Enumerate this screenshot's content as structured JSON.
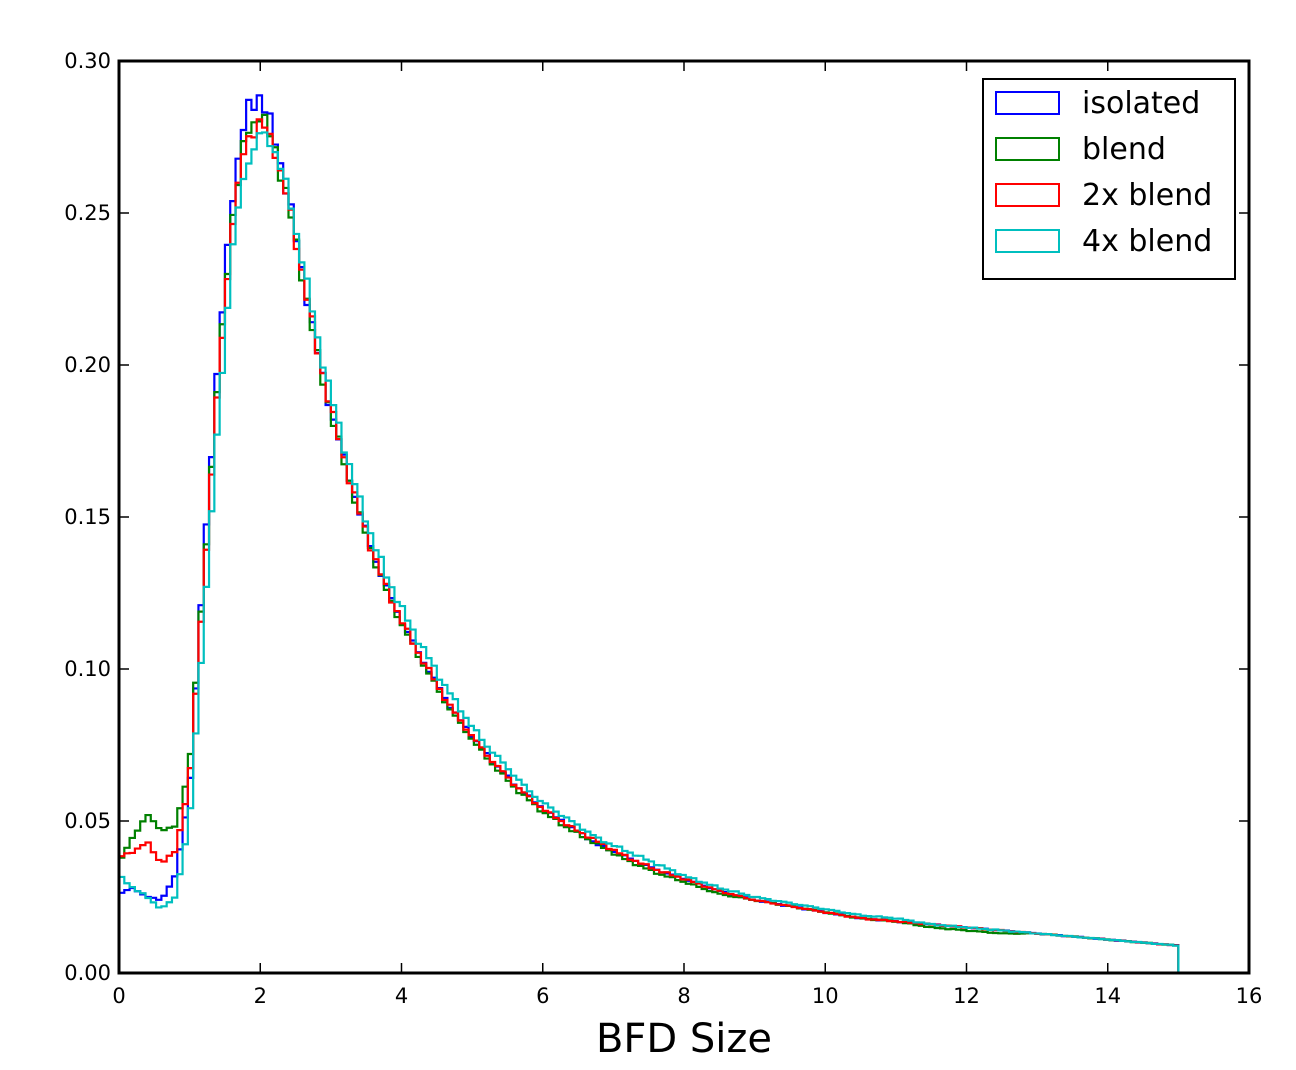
{
  "chart_data": {
    "type": "line",
    "title": "",
    "xlabel": "BFD Size",
    "ylabel": "",
    "xlim": [
      0,
      16
    ],
    "ylim": [
      0,
      0.3
    ],
    "xticks": [
      0,
      2,
      4,
      6,
      8,
      10,
      12,
      14,
      16
    ],
    "yticks": [
      0.0,
      0.05,
      0.1,
      0.15,
      0.2,
      0.25,
      0.3
    ],
    "xtick_labels": [
      "0",
      "2",
      "4",
      "6",
      "8",
      "10",
      "12",
      "14",
      "16"
    ],
    "ytick_labels": [
      "0.00",
      "0.05",
      "0.10",
      "0.15",
      "0.20",
      "0.25",
      "0.30"
    ],
    "legend_position": "top-right",
    "grid": false,
    "histtype": "step",
    "x": [
      0.0,
      0.2,
      0.4,
      0.6,
      0.8,
      1.0,
      1.2,
      1.4,
      1.6,
      1.8,
      2.0,
      2.2,
      2.4,
      2.6,
      2.8,
      3.0,
      3.2,
      3.4,
      3.6,
      3.8,
      4.0,
      4.2,
      4.4,
      4.6,
      4.8,
      5.0,
      5.2,
      5.4,
      5.6,
      5.8,
      6.0,
      6.4,
      6.8,
      7.2,
      7.6,
      8.0,
      8.5,
      9.0,
      9.5,
      10.0,
      10.5,
      11.0,
      11.5,
      12.0,
      12.5,
      13.0,
      13.5,
      14.0,
      14.5,
      15.0
    ],
    "series": [
      {
        "name": "isolated",
        "color": "#0000ff",
        "values": [
          0.026,
          0.028,
          0.025,
          0.024,
          0.032,
          0.06,
          0.135,
          0.2,
          0.255,
          0.283,
          0.289,
          0.275,
          0.255,
          0.23,
          0.205,
          0.185,
          0.168,
          0.152,
          0.138,
          0.126,
          0.116,
          0.107,
          0.099,
          0.091,
          0.084,
          0.078,
          0.072,
          0.067,
          0.062,
          0.058,
          0.054,
          0.048,
          0.042,
          0.038,
          0.034,
          0.031,
          0.027,
          0.024,
          0.022,
          0.02,
          0.018,
          0.017,
          0.016,
          0.015,
          0.014,
          0.013,
          0.012,
          0.011,
          0.01,
          0.009
        ]
      },
      {
        "name": "blend",
        "color": "#008000",
        "values": [
          0.036,
          0.045,
          0.052,
          0.047,
          0.048,
          0.068,
          0.13,
          0.195,
          0.248,
          0.276,
          0.283,
          0.272,
          0.253,
          0.229,
          0.204,
          0.184,
          0.167,
          0.151,
          0.137,
          0.125,
          0.115,
          0.106,
          0.098,
          0.09,
          0.083,
          0.077,
          0.071,
          0.066,
          0.061,
          0.057,
          0.053,
          0.047,
          0.042,
          0.037,
          0.033,
          0.03,
          0.026,
          0.024,
          0.022,
          0.02,
          0.018,
          0.017,
          0.015,
          0.014,
          0.013,
          0.013,
          0.012,
          0.011,
          0.01,
          0.009
        ]
      },
      {
        "name": "2x blend",
        "color": "#ff0000",
        "values": [
          0.038,
          0.04,
          0.043,
          0.036,
          0.04,
          0.063,
          0.128,
          0.192,
          0.246,
          0.274,
          0.28,
          0.272,
          0.253,
          0.23,
          0.206,
          0.186,
          0.168,
          0.152,
          0.138,
          0.126,
          0.116,
          0.107,
          0.099,
          0.091,
          0.084,
          0.078,
          0.072,
          0.067,
          0.062,
          0.058,
          0.054,
          0.048,
          0.043,
          0.038,
          0.034,
          0.031,
          0.027,
          0.024,
          0.022,
          0.02,
          0.018,
          0.017,
          0.016,
          0.015,
          0.014,
          0.013,
          0.012,
          0.011,
          0.01,
          0.009
        ]
      },
      {
        "name": "4x blend",
        "color": "#00bfbf",
        "values": [
          0.032,
          0.028,
          0.025,
          0.021,
          0.025,
          0.05,
          0.115,
          0.18,
          0.238,
          0.266,
          0.276,
          0.272,
          0.256,
          0.234,
          0.21,
          0.19,
          0.172,
          0.156,
          0.142,
          0.13,
          0.12,
          0.111,
          0.103,
          0.095,
          0.088,
          0.081,
          0.075,
          0.07,
          0.065,
          0.06,
          0.056,
          0.05,
          0.044,
          0.04,
          0.036,
          0.032,
          0.028,
          0.025,
          0.023,
          0.021,
          0.019,
          0.018,
          0.016,
          0.015,
          0.014,
          0.013,
          0.012,
          0.011,
          0.01,
          0.009
        ]
      }
    ]
  }
}
